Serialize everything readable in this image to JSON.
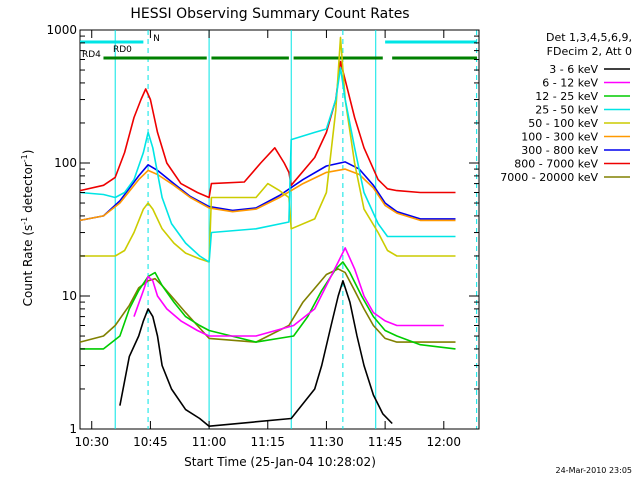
{
  "chart_data": {
    "type": "line",
    "title": "HESSI Observing Summary Count Rates",
    "xlabel": "Start Time (25-Jan-04 10:28:02)",
    "ylabel_main": "Count Rate (s",
    "ylabel_sup1": "-1",
    "ylabel_mid": " detector",
    "ylabel_sup2": "-1",
    "ylabel_end": ")",
    "y_scale": "log",
    "ylim": [
      1,
      1000
    ],
    "xlim_minutes": [
      10.45,
      12.15
    ],
    "x_ticks": [
      {
        "label": "10:30",
        "value": 10.5
      },
      {
        "label": "10:45",
        "value": 10.75
      },
      {
        "label": "11:00",
        "value": 11.0
      },
      {
        "label": "11:15",
        "value": 11.25
      },
      {
        "label": "11:30",
        "value": 11.5
      },
      {
        "label": "11:45",
        "value": 11.75
      },
      {
        "label": "12:00",
        "value": 12.0
      }
    ],
    "y_ticks": [
      {
        "label": "1",
        "value": 1
      },
      {
        "label": "10",
        "value": 10
      },
      {
        "label": "100",
        "value": 100
      },
      {
        "label": "1000",
        "value": 1000
      }
    ],
    "legend_header": [
      "Det 1,3,4,5,6,9,",
      "FDecim 2, Att 0"
    ],
    "legend_position": "right",
    "series": [
      {
        "name": "3 - 6 keV",
        "color": "#000000",
        "x": [
          10.62,
          10.66,
          10.7,
          10.72,
          10.74,
          10.76,
          10.78,
          10.8,
          10.84,
          10.9,
          10.96,
          11.0,
          11.35,
          11.45,
          11.48,
          11.52,
          11.55,
          11.57,
          11.6,
          11.63,
          11.66,
          11.7,
          11.74,
          11.78
        ],
        "y": [
          1.5,
          3.5,
          5,
          6.5,
          8,
          7,
          5,
          3,
          2,
          1.4,
          1.2,
          1.05,
          1.2,
          2,
          3,
          6,
          10,
          13,
          9,
          5,
          3,
          1.8,
          1.3,
          1.1
        ]
      },
      {
        "name": "6 - 12 keV",
        "color": "#ff00ff",
        "x": [
          10.68,
          10.72,
          10.74,
          10.76,
          10.78,
          10.82,
          10.88,
          10.95,
          11.0,
          11.2,
          11.36,
          11.45,
          11.5,
          11.55,
          11.58,
          11.62,
          11.66,
          11.7,
          11.75,
          11.8,
          12.0
        ],
        "y": [
          7,
          11,
          14,
          13,
          10,
          8,
          6.5,
          5.5,
          5,
          5,
          6,
          8,
          12,
          18,
          23,
          16,
          10,
          7.5,
          6.5,
          6,
          6
        ]
      },
      {
        "name": "12 - 25 keV",
        "color": "#00cc00",
        "x": [
          10.45,
          10.55,
          10.62,
          10.66,
          10.7,
          10.74,
          10.77,
          10.8,
          10.85,
          10.9,
          10.96,
          11.0,
          11.2,
          11.36,
          11.42,
          11.48,
          11.54,
          11.57,
          11.6,
          11.65,
          11.7,
          11.75,
          11.8,
          11.9,
          12.05
        ],
        "y": [
          4,
          4,
          5,
          8,
          11,
          14,
          15,
          12,
          9,
          7,
          6,
          5.5,
          4.5,
          5,
          7,
          11,
          16,
          18,
          15,
          10,
          7,
          5.5,
          5,
          4.3,
          4
        ]
      },
      {
        "name": "25 - 50 keV",
        "color": "#00e5e5",
        "x": [
          10.45,
          10.55,
          10.6,
          10.64,
          10.68,
          10.72,
          10.74,
          10.76,
          10.8,
          10.84,
          10.9,
          10.96,
          11.0,
          11.01,
          11.2,
          11.34,
          11.35,
          11.45,
          11.5,
          11.54,
          11.56,
          11.58,
          11.62,
          11.66,
          11.72,
          11.76,
          11.8,
          11.9,
          12.05
        ],
        "y": [
          60,
          58,
          55,
          60,
          75,
          120,
          170,
          130,
          55,
          35,
          25,
          20,
          18,
          30,
          32,
          36,
          150,
          170,
          180,
          300,
          520,
          300,
          130,
          60,
          35,
          28,
          28,
          28,
          28
        ]
      },
      {
        "name": "50 - 100 keV",
        "color": "#cccc00",
        "x": [
          10.45,
          10.55,
          10.6,
          10.64,
          10.68,
          10.72,
          10.74,
          10.76,
          10.8,
          10.85,
          10.9,
          10.96,
          11.0,
          11.01,
          11.2,
          11.25,
          11.3,
          11.34,
          11.35,
          11.45,
          11.5,
          11.54,
          11.56,
          11.58,
          11.62,
          11.66,
          11.72,
          11.76,
          11.8,
          11.9,
          12.05
        ],
        "y": [
          20,
          20,
          20,
          22,
          30,
          45,
          50,
          45,
          32,
          25,
          21,
          19,
          18,
          55,
          55,
          70,
          62,
          55,
          32,
          38,
          60,
          250,
          880,
          300,
          100,
          45,
          30,
          22,
          20,
          20,
          20
        ]
      },
      {
        "name": "100 - 300 keV",
        "color": "#ff9900",
        "x": [
          10.45,
          10.55,
          10.62,
          10.7,
          10.74,
          10.78,
          10.85,
          10.92,
          11.0,
          11.1,
          11.2,
          11.3,
          11.4,
          11.5,
          11.58,
          11.64,
          11.7,
          11.75,
          11.8,
          11.9,
          12.05
        ],
        "y": [
          37,
          40,
          50,
          75,
          88,
          82,
          68,
          55,
          46,
          43,
          45,
          55,
          70,
          85,
          90,
          82,
          65,
          48,
          42,
          37,
          37
        ]
      },
      {
        "name": "300 - 800 keV",
        "color": "#0000ee",
        "x": [
          10.45,
          10.55,
          10.62,
          10.7,
          10.74,
          10.78,
          10.85,
          10.92,
          11.0,
          11.1,
          11.2,
          11.3,
          11.4,
          11.5,
          11.58,
          11.64,
          11.7,
          11.75,
          11.8,
          11.9,
          12.05
        ],
        "y": [
          37,
          40,
          52,
          80,
          97,
          88,
          70,
          56,
          47,
          44,
          46,
          57,
          75,
          95,
          102,
          90,
          68,
          50,
          43,
          38,
          38
        ]
      },
      {
        "name": "800 - 7000 keV",
        "color": "#ee0000",
        "x": [
          10.45,
          10.55,
          10.6,
          10.64,
          10.68,
          10.71,
          10.73,
          10.75,
          10.78,
          10.82,
          10.88,
          10.95,
          11.0,
          11.01,
          11.15,
          11.22,
          11.28,
          11.32,
          11.34,
          11.35,
          11.45,
          11.5,
          11.54,
          11.56,
          11.58,
          11.62,
          11.66,
          11.72,
          11.76,
          11.8,
          11.9,
          12.05
        ],
        "y": [
          62,
          68,
          78,
          120,
          220,
          300,
          360,
          300,
          170,
          100,
          70,
          60,
          55,
          70,
          72,
          100,
          130,
          100,
          85,
          68,
          110,
          170,
          300,
          580,
          420,
          220,
          130,
          75,
          64,
          62,
          60,
          60
        ]
      },
      {
        "name": "7000 - 20000 keV",
        "color": "#808000",
        "x": [
          10.45,
          10.55,
          10.6,
          10.66,
          10.7,
          10.74,
          10.77,
          10.8,
          10.85,
          10.9,
          10.95,
          11.0,
          11.2,
          11.34,
          11.4,
          11.46,
          11.5,
          11.55,
          11.58,
          11.62,
          11.66,
          11.7,
          11.75,
          11.8,
          11.9,
          12.05
        ],
        "y": [
          4.5,
          5,
          6,
          8.5,
          11.5,
          13,
          13.5,
          12,
          9.5,
          7.5,
          6,
          4.8,
          4.5,
          6,
          9,
          12,
          14.5,
          16,
          15,
          11,
          8,
          6,
          4.8,
          4.5,
          4.5,
          4.5
        ]
      }
    ],
    "flag_bars": [
      {
        "label": "RD0",
        "color": "#00e5e5",
        "segments": [
          [
            10.45,
            10.72
          ],
          [
            11.75,
            12.15
          ]
        ]
      },
      {
        "label": "RD4",
        "color": "#008000",
        "segments": [
          [
            10.55,
            10.99
          ],
          [
            11.01,
            11.34
          ],
          [
            11.36,
            11.74
          ],
          [
            11.78,
            12.15
          ]
        ]
      }
    ],
    "marker_label": "N",
    "vertical_lines_solid": [
      10.6,
      11.0,
      11.35,
      11.71
    ],
    "vertical_lines_dashed": [
      10.74,
      11.57,
      12.14
    ],
    "timestamp": "24-Mar-2010 23:05"
  }
}
